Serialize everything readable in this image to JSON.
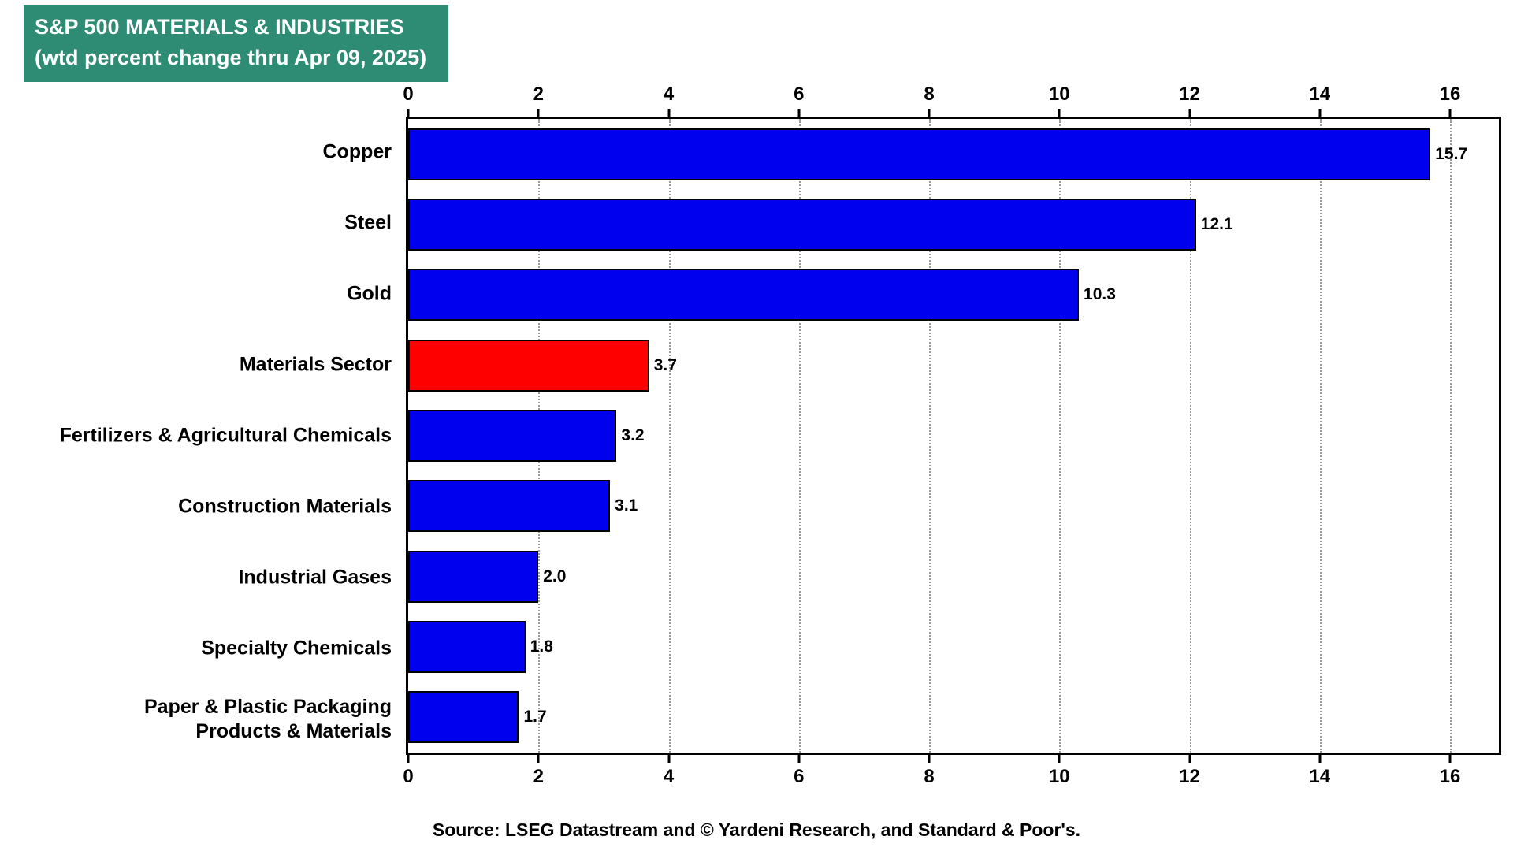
{
  "header": {
    "title_line1": "S&P 500 MATERIALS & INDUSTRIES",
    "title_line2": "(wtd percent change thru Apr 09, 2025)",
    "bg_color": "#2E8B74",
    "text_color": "#ffffff"
  },
  "chart_data": {
    "type": "bar",
    "orientation": "horizontal",
    "title": "S&P 500 MATERIALS & INDUSTRIES (wtd percent change thru Apr 09, 2025)",
    "xlabel": "",
    "ylabel": "",
    "categories": [
      "Copper",
      "Steel",
      "Gold",
      "Materials Sector",
      "Fertilizers & Agricultural Chemicals",
      "Construction Materials",
      "Industrial Gases",
      "Specialty Chemicals",
      "Paper & Plastic Packaging\nProducts & Materials"
    ],
    "values": [
      15.7,
      12.1,
      10.3,
      3.7,
      3.2,
      3.1,
      2.0,
      1.8,
      1.7
    ],
    "value_labels": [
      "15.7",
      "12.1",
      "10.3",
      "3.7",
      "3.2",
      "3.1",
      "2.0",
      "1.8",
      "1.7"
    ],
    "colors": [
      "#0000EE",
      "#0000EE",
      "#0000EE",
      "#FF0000",
      "#0000EE",
      "#0000EE",
      "#0000EE",
      "#0000EE",
      "#0000EE"
    ],
    "default_color": "#0000EE",
    "highlight_color": "#FF0000",
    "highlight_index": 3,
    "xlim": [
      0,
      16.75
    ],
    "xticks": [
      0,
      2,
      4,
      6,
      8,
      10,
      12,
      14,
      16
    ],
    "grid": "vertical dotted gridlines at x ticks",
    "legend": "none"
  },
  "footer": {
    "source": "Source: LSEG Datastream and © Yardeni Research, and Standard & Poor's."
  }
}
